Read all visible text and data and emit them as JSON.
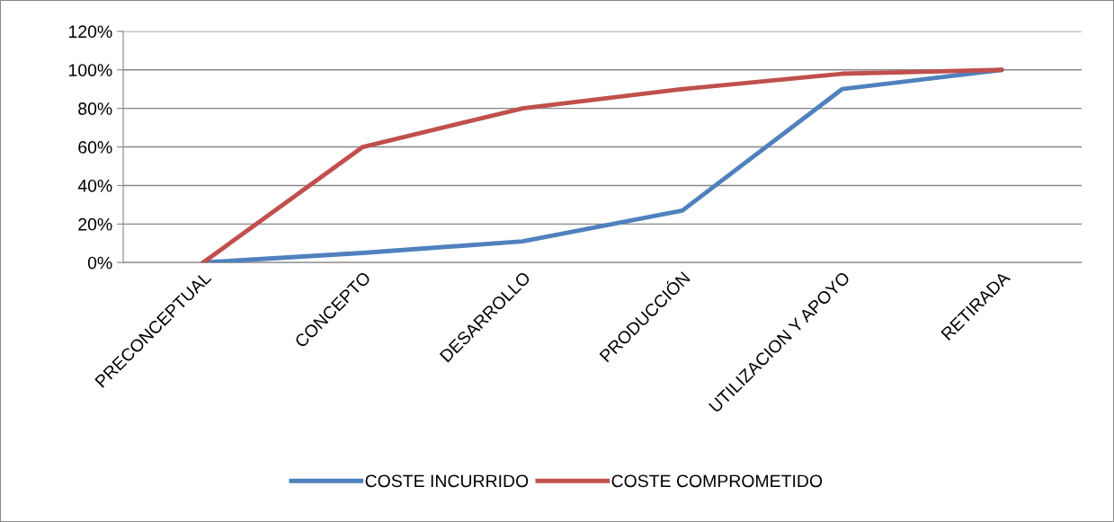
{
  "chart_data": {
    "type": "line",
    "categories": [
      "PRECONCEPTUAL",
      "CONCEPTO",
      "DESARROLLO",
      "PRODUCCIÓN",
      "UTILIZACION Y APOYO",
      "RETIRADA"
    ],
    "series": [
      {
        "name": "COSTE INCURRIDO",
        "color": "#4f81bd",
        "values": [
          0,
          5,
          11,
          27,
          90,
          100
        ]
      },
      {
        "name": "COSTE COMPROMETIDO",
        "color": "#c0504d",
        "values": [
          0,
          60,
          80,
          90,
          98,
          100
        ]
      }
    ],
    "ylim": [
      0,
      120
    ],
    "yticks": [
      {
        "value": 0,
        "label": "0%"
      },
      {
        "value": 20,
        "label": "20%"
      },
      {
        "value": 40,
        "label": "40%"
      },
      {
        "value": 60,
        "label": "60%"
      },
      {
        "value": 80,
        "label": "80%"
      },
      {
        "value": 100,
        "label": "100%"
      },
      {
        "value": 120,
        "label": "120%"
      }
    ],
    "grid": "y",
    "legend": "bottom",
    "marker": "none",
    "line_style": "solid"
  }
}
